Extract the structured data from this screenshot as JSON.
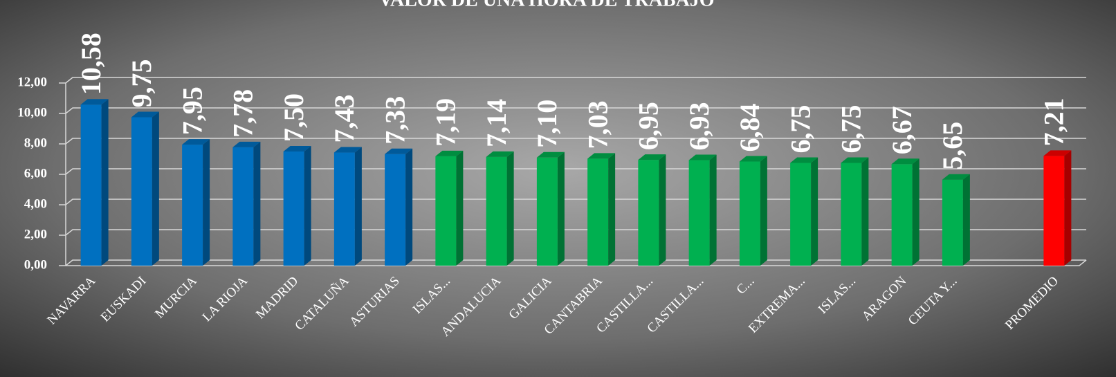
{
  "chart_data": {
    "type": "bar3d",
    "title": "VALOR DE UNA HORA DE TRABAJO",
    "categories": [
      "NAVARRA",
      "EUSKADI",
      "MURCIA",
      "LA RIOJA",
      "MADRID",
      "CATALUÑA",
      "ASTURIAS",
      "ISLAS...",
      "ANDALUCIA",
      "GALICIA",
      "CANTABRIA",
      "CASTILLA...",
      "CASTILLA...",
      "C...",
      "EXTREMA...",
      "ISLAS...",
      "ARAGON",
      "CEUTA Y...",
      null,
      "PROMEDIO"
    ],
    "values": [
      10.58,
      9.75,
      7.95,
      7.78,
      7.5,
      7.43,
      7.33,
      7.19,
      7.14,
      7.1,
      7.03,
      6.95,
      6.93,
      6.84,
      6.75,
      6.75,
      6.67,
      5.65,
      null,
      7.21
    ],
    "value_labels": [
      "10,58",
      "9,75",
      "7,95",
      "7,78",
      "7,50",
      "7,43",
      "7,33",
      "7,19",
      "7,14",
      "7,10",
      "7,03",
      "6,95",
      "6,93",
      "6,84",
      "6,75",
      "6,75",
      "6,67",
      "5,65",
      null,
      "7,21"
    ],
    "colors": [
      "#0070c0",
      "#0070c0",
      "#0070c0",
      "#0070c0",
      "#0070c0",
      "#0070c0",
      "#0070c0",
      "#00b050",
      "#00b050",
      "#00b050",
      "#00b050",
      "#00b050",
      "#00b050",
      "#00b050",
      "#00b050",
      "#00b050",
      "#00b050",
      "#00b050",
      null,
      "#ff0000"
    ],
    "ylim": [
      0,
      12
    ],
    "yticks": [
      {
        "value": 0,
        "label": "0,00"
      },
      {
        "value": 2,
        "label": "2,00"
      },
      {
        "value": 4,
        "label": "4,00"
      },
      {
        "value": 6,
        "label": "6,00"
      },
      {
        "value": 8,
        "label": "8,00"
      },
      {
        "value": 10,
        "label": "10,00"
      },
      {
        "value": 12,
        "label": "12,00"
      }
    ],
    "grid": true
  }
}
